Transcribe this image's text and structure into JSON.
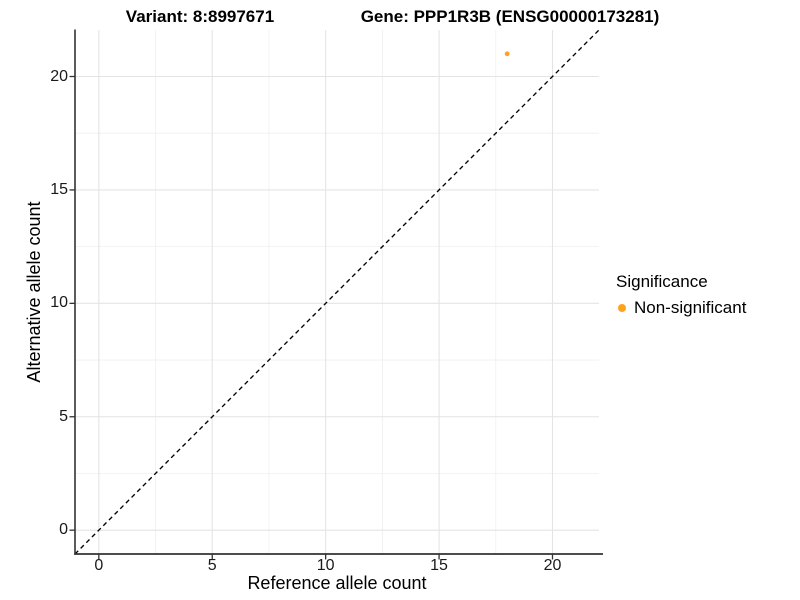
{
  "chart_data": {
    "type": "scatter",
    "title_left": "Variant: 8:8997671",
    "title_right": "Gene: PPP1R3B (ENSG00000173281)",
    "xlabel": "Reference allele count",
    "ylabel": "Alternative allele count",
    "xlim": [
      -1.05,
      22.05
    ],
    "ylim": [
      -1.05,
      22.05
    ],
    "xticks": [
      0,
      5,
      10,
      15,
      20
    ],
    "yticks": [
      0,
      5,
      10,
      15,
      20
    ],
    "grid": {
      "major": true,
      "minor": true,
      "major_color": "#E4E4E4",
      "minor_color": "#EFEFEF"
    },
    "identity_line": {
      "style": "dashed",
      "equation": "y = x",
      "color": "#000000"
    },
    "series": [
      {
        "name": "Non-significant",
        "color": "#FFA21F",
        "points": [
          {
            "x": 18,
            "y": 21
          }
        ]
      }
    ],
    "legend": {
      "title": "Significance",
      "position": "right",
      "items": [
        {
          "label": "Non-significant",
          "color": "#FFA21F"
        }
      ]
    },
    "axis_color": "#333333",
    "tick_color": "#333333",
    "text_color": "#1a1a1a"
  }
}
